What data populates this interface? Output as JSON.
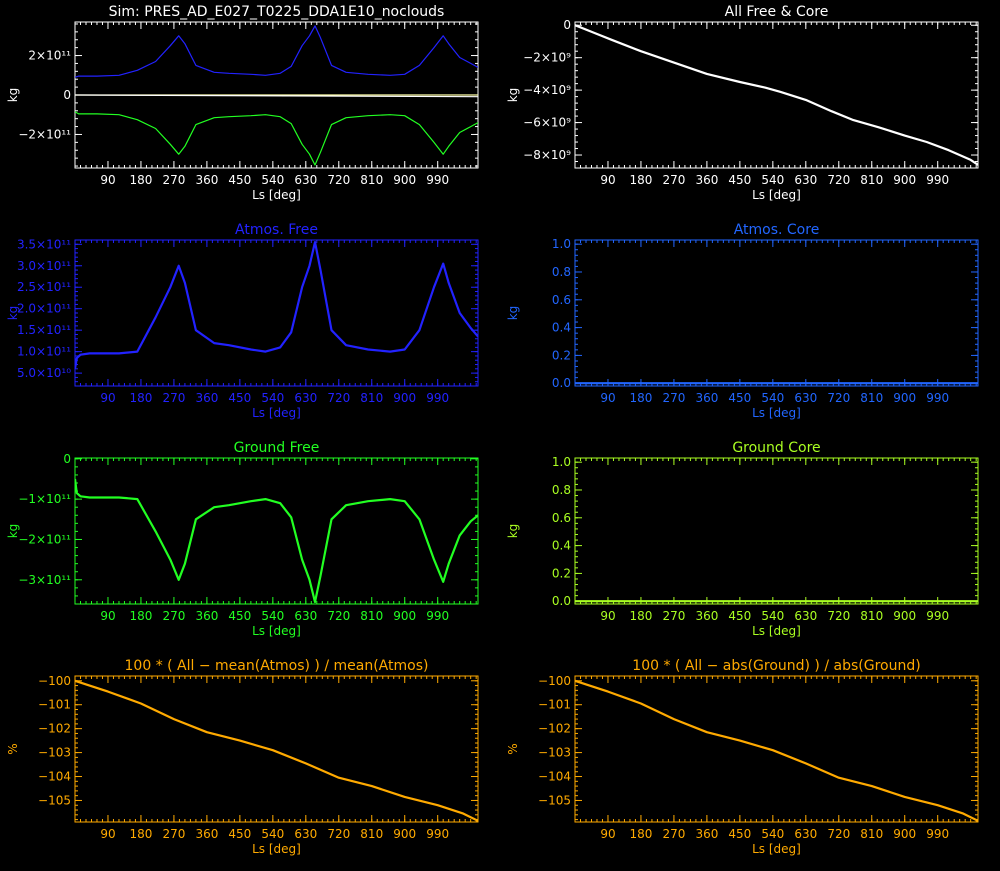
{
  "chart_data": [
    {
      "id": "p1",
      "type": "line",
      "color": "#ffffff",
      "title": "Sim: PRES_AD_E027_T0225_DDA1E10_noclouds",
      "xlabel": "Ls [deg]",
      "ylabel": "kg",
      "xlim": [
        0,
        1100
      ],
      "ylim": [
        -370000000000.0,
        370000000000.0
      ],
      "xticks": [
        90,
        180,
        270,
        360,
        450,
        540,
        630,
        720,
        810,
        900,
        990
      ],
      "yticks": [
        {
          "v": 200000000000.0,
          "label": "2×10¹¹"
        },
        {
          "v": 0,
          "label": "0"
        },
        {
          "v": -200000000000.0,
          "label": "−2×10¹¹"
        }
      ],
      "series": [
        {
          "color": "#2222ff",
          "x": [
            0,
            10,
            60,
            120,
            170,
            220,
            260,
            283,
            300,
            330,
            380,
            420,
            480,
            520,
            560,
            590,
            620,
            640,
            655,
            670,
            700,
            740,
            800,
            860,
            900,
            940,
            980,
            1005,
            1020,
            1050,
            1080,
            1100
          ],
          "y": [
            90000000000.0,
            96000000000.0,
            96000000000.0,
            100000000000.0,
            125000000000.0,
            170000000000.0,
            250000000000.0,
            300000000000.0,
            260000000000.0,
            150000000000.0,
            115000000000.0,
            110000000000.0,
            105000000000.0,
            100000000000.0,
            110000000000.0,
            145000000000.0,
            250000000000.0,
            300000000000.0,
            350000000000.0,
            290000000000.0,
            150000000000.0,
            115000000000.0,
            105000000000.0,
            100000000000.0,
            105000000000.0,
            150000000000.0,
            240000000000.0,
            300000000000.0,
            260000000000.0,
            190000000000.0,
            160000000000.0,
            140000000000.0
          ]
        },
        {
          "color": "#22ff22",
          "x": [
            0,
            10,
            60,
            120,
            170,
            220,
            260,
            283,
            300,
            330,
            380,
            420,
            480,
            520,
            560,
            590,
            620,
            640,
            655,
            670,
            700,
            740,
            800,
            860,
            900,
            940,
            980,
            1005,
            1020,
            1050,
            1080,
            1100
          ],
          "y": [
            -85000000000.0,
            -96000000000.0,
            -96000000000.0,
            -100000000000.0,
            -125000000000.0,
            -170000000000.0,
            -250000000000.0,
            -300000000000.0,
            -260000000000.0,
            -150000000000.0,
            -115000000000.0,
            -110000000000.0,
            -105000000000.0,
            -100000000000.0,
            -110000000000.0,
            -145000000000.0,
            -250000000000.0,
            -300000000000.0,
            -355000000000.0,
            -290000000000.0,
            -150000000000.0,
            -115000000000.0,
            -105000000000.0,
            -100000000000.0,
            -105000000000.0,
            -150000000000.0,
            -240000000000.0,
            -300000000000.0,
            -260000000000.0,
            -190000000000.0,
            -160000000000.0,
            -140000000000.0
          ]
        },
        {
          "color": "#ffffaa",
          "x": [
            0,
            400,
            1100
          ],
          "y": [
            0,
            0,
            0
          ]
        },
        {
          "color": "#ffffff",
          "x": [
            0,
            1100
          ],
          "y": [
            0,
            -8600000000.0
          ]
        }
      ]
    },
    {
      "id": "p2",
      "type": "line",
      "color": "#ffffff",
      "title": "All Free & Core",
      "xlabel": "Ls [deg]",
      "ylabel": "kg",
      "xlim": [
        0,
        1100
      ],
      "ylim": [
        -8800000000.0,
        200000000.0
      ],
      "xticks": [
        90,
        180,
        270,
        360,
        450,
        540,
        630,
        720,
        810,
        900,
        990
      ],
      "yticks": [
        {
          "v": 0,
          "label": "0"
        },
        {
          "v": -2000000000.0,
          "label": "−2×10⁹"
        },
        {
          "v": -4000000000.0,
          "label": "−4×10⁹"
        },
        {
          "v": -6000000000.0,
          "label": "−6×10⁹"
        },
        {
          "v": -8000000000.0,
          "label": "−8×10⁹"
        }
      ],
      "series": [
        {
          "color": "#ffffff",
          "x": [
            0,
            50,
            100,
            180,
            270,
            360,
            450,
            520,
            560,
            630,
            700,
            760,
            830,
            900,
            960,
            1020,
            1080,
            1100
          ],
          "y": [
            0,
            -450000000.0,
            -900000000.0,
            -1600000000.0,
            -2300000000.0,
            -3000000000.0,
            -3500000000.0,
            -3850000000.0,
            -4100000000.0,
            -4600000000.0,
            -5300000000.0,
            -5850000000.0,
            -6300000000.0,
            -6800000000.0,
            -7200000000.0,
            -7700000000.0,
            -8300000000.0,
            -8600000000.0
          ]
        }
      ]
    },
    {
      "id": "p3",
      "type": "line",
      "color": "#2222ff",
      "title": "Atmos. Free",
      "xlabel": "Ls [deg]",
      "ylabel": "kg",
      "xlim": [
        0,
        1100
      ],
      "ylim": [
        20000000000.0,
        360000000000.0
      ],
      "xticks": [
        90,
        180,
        270,
        360,
        450,
        540,
        630,
        720,
        810,
        900,
        990
      ],
      "yticks": [
        {
          "v": 50000000000.0,
          "label": "5.0×10¹⁰"
        },
        {
          "v": 100000000000.0,
          "label": "1.0×10¹¹"
        },
        {
          "v": 150000000000.0,
          "label": "1.5×10¹¹"
        },
        {
          "v": 200000000000.0,
          "label": "2.0×10¹¹"
        },
        {
          "v": 250000000000.0,
          "label": "2.5×10¹¹"
        },
        {
          "v": 300000000000.0,
          "label": "3.0×10¹¹"
        },
        {
          "v": 350000000000.0,
          "label": "3.5×10¹¹"
        }
      ],
      "series": [
        {
          "color": "#2222ff",
          "x": [
            0,
            5,
            15,
            40,
            80,
            120,
            170,
            220,
            260,
            283,
            300,
            330,
            380,
            420,
            480,
            520,
            560,
            590,
            620,
            640,
            655,
            670,
            700,
            740,
            800,
            860,
            900,
            940,
            980,
            1005,
            1020,
            1050,
            1080,
            1100
          ],
          "y": [
            60000000000.0,
            85000000000.0,
            93000000000.0,
            96000000000.0,
            96000000000.0,
            96000000000.0,
            100000000000.0,
            180000000000.0,
            250000000000.0,
            300000000000.0,
            260000000000.0,
            150000000000.0,
            120000000000.0,
            115000000000.0,
            105000000000.0,
            100000000000.0,
            110000000000.0,
            145000000000.0,
            250000000000.0,
            300000000000.0,
            355000000000.0,
            290000000000.0,
            150000000000.0,
            115000000000.0,
            105000000000.0,
            100000000000.0,
            105000000000.0,
            150000000000.0,
            250000000000.0,
            305000000000.0,
            260000000000.0,
            190000000000.0,
            155000000000.0,
            135000000000.0
          ]
        }
      ]
    },
    {
      "id": "p4",
      "type": "line",
      "color": "#2266ff",
      "title": "Atmos. Core",
      "xlabel": "Ls [deg]",
      "ylabel": "kg",
      "xlim": [
        0,
        1100
      ],
      "ylim": [
        -0.02,
        1.03
      ],
      "xticks": [
        90,
        180,
        270,
        360,
        450,
        540,
        630,
        720,
        810,
        900,
        990
      ],
      "yticks": [
        {
          "v": 0,
          "label": "0.0"
        },
        {
          "v": 0.2,
          "label": "0.2"
        },
        {
          "v": 0.4,
          "label": "0.4"
        },
        {
          "v": 0.6,
          "label": "0.6"
        },
        {
          "v": 0.8,
          "label": "0.8"
        },
        {
          "v": 1.0,
          "label": "1.0"
        }
      ],
      "series": [
        {
          "color": "#2266ff",
          "x": [
            0,
            1100
          ],
          "y": [
            0,
            0
          ]
        }
      ]
    },
    {
      "id": "p5",
      "type": "line",
      "color": "#22ff22",
      "title": "Ground Free",
      "xlabel": "Ls [deg]",
      "ylabel": "kg",
      "xlim": [
        0,
        1100
      ],
      "ylim": [
        -360000000000.0,
        2000000000.0
      ],
      "xticks": [
        90,
        180,
        270,
        360,
        450,
        540,
        630,
        720,
        810,
        900,
        990
      ],
      "yticks": [
        {
          "v": 0,
          "label": "0"
        },
        {
          "v": -100000000000.0,
          "label": "−1×10¹¹"
        },
        {
          "v": -200000000000.0,
          "label": "−2×10¹¹"
        },
        {
          "v": -300000000000.0,
          "label": "−3×10¹¹"
        }
      ],
      "series": [
        {
          "color": "#22ff22",
          "x": [
            0,
            5,
            15,
            40,
            80,
            120,
            170,
            220,
            260,
            283,
            300,
            330,
            380,
            420,
            480,
            520,
            560,
            590,
            620,
            640,
            655,
            670,
            700,
            740,
            800,
            860,
            900,
            940,
            980,
            1005,
            1020,
            1050,
            1080,
            1100
          ],
          "y": [
            -50000000000.0,
            -85000000000.0,
            -93000000000.0,
            -96000000000.0,
            -96000000000.0,
            -96000000000.0,
            -100000000000.0,
            -180000000000.0,
            -250000000000.0,
            -300000000000.0,
            -260000000000.0,
            -150000000000.0,
            -120000000000.0,
            -115000000000.0,
            -105000000000.0,
            -100000000000.0,
            -110000000000.0,
            -145000000000.0,
            -250000000000.0,
            -300000000000.0,
            -355000000000.0,
            -290000000000.0,
            -150000000000.0,
            -115000000000.0,
            -105000000000.0,
            -100000000000.0,
            -105000000000.0,
            -150000000000.0,
            -250000000000.0,
            -305000000000.0,
            -260000000000.0,
            -190000000000.0,
            -155000000000.0,
            -140000000000.0
          ]
        }
      ]
    },
    {
      "id": "p6",
      "type": "line",
      "color": "#aaff22",
      "title": "Ground Core",
      "xlabel": "Ls [deg]",
      "ylabel": "kg",
      "xlim": [
        0,
        1100
      ],
      "ylim": [
        -0.02,
        1.03
      ],
      "xticks": [
        90,
        180,
        270,
        360,
        450,
        540,
        630,
        720,
        810,
        900,
        990
      ],
      "yticks": [
        {
          "v": 0,
          "label": "0.0"
        },
        {
          "v": 0.2,
          "label": "0.2"
        },
        {
          "v": 0.4,
          "label": "0.4"
        },
        {
          "v": 0.6,
          "label": "0.6"
        },
        {
          "v": 0.8,
          "label": "0.8"
        },
        {
          "v": 1.0,
          "label": "1.0"
        }
      ],
      "series": [
        {
          "color": "#aaff22",
          "x": [
            0,
            1100
          ],
          "y": [
            0,
            0
          ]
        }
      ]
    },
    {
      "id": "p7",
      "type": "line",
      "color": "#ffaa00",
      "title": "100 * ( All − mean(Atmos) ) / mean(Atmos)",
      "xlabel": "Ls [deg]",
      "ylabel": "%",
      "xlim": [
        0,
        1100
      ],
      "ylim": [
        -105.9,
        -99.8
      ],
      "xticks": [
        90,
        180,
        270,
        360,
        450,
        540,
        630,
        720,
        810,
        900,
        990
      ],
      "yticks": [
        {
          "v": -100,
          "label": "−100"
        },
        {
          "v": -101,
          "label": "−101"
        },
        {
          "v": -102,
          "label": "−102"
        },
        {
          "v": -103,
          "label": "−103"
        },
        {
          "v": -104,
          "label": "−104"
        },
        {
          "v": -105,
          "label": "−105"
        }
      ],
      "series": [
        {
          "color": "#ffaa00",
          "x": [
            0,
            90,
            180,
            270,
            360,
            450,
            540,
            630,
            720,
            810,
            900,
            990,
            1060,
            1100
          ],
          "y": [
            -100.0,
            -100.45,
            -100.95,
            -101.6,
            -102.15,
            -102.5,
            -102.9,
            -103.45,
            -104.05,
            -104.4,
            -104.85,
            -105.2,
            -105.55,
            -105.85
          ]
        }
      ]
    },
    {
      "id": "p8",
      "type": "line",
      "color": "#ffaa00",
      "title": "100 * ( All − abs(Ground) ) / abs(Ground)",
      "xlabel": "Ls [deg]",
      "ylabel": "%",
      "xlim": [
        0,
        1100
      ],
      "ylim": [
        -105.9,
        -99.8
      ],
      "xticks": [
        90,
        180,
        270,
        360,
        450,
        540,
        630,
        720,
        810,
        900,
        990
      ],
      "yticks": [
        {
          "v": -100,
          "label": "−100"
        },
        {
          "v": -101,
          "label": "−101"
        },
        {
          "v": -102,
          "label": "−102"
        },
        {
          "v": -103,
          "label": "−103"
        },
        {
          "v": -104,
          "label": "−104"
        },
        {
          "v": -105,
          "label": "−105"
        }
      ],
      "series": [
        {
          "color": "#ffaa00",
          "x": [
            0,
            90,
            180,
            270,
            360,
            450,
            540,
            630,
            720,
            810,
            900,
            990,
            1060,
            1100
          ],
          "y": [
            -100.0,
            -100.45,
            -100.95,
            -101.6,
            -102.15,
            -102.5,
            -102.9,
            -103.45,
            -104.05,
            -104.4,
            -104.85,
            -105.2,
            -105.55,
            -105.85
          ]
        }
      ]
    }
  ]
}
